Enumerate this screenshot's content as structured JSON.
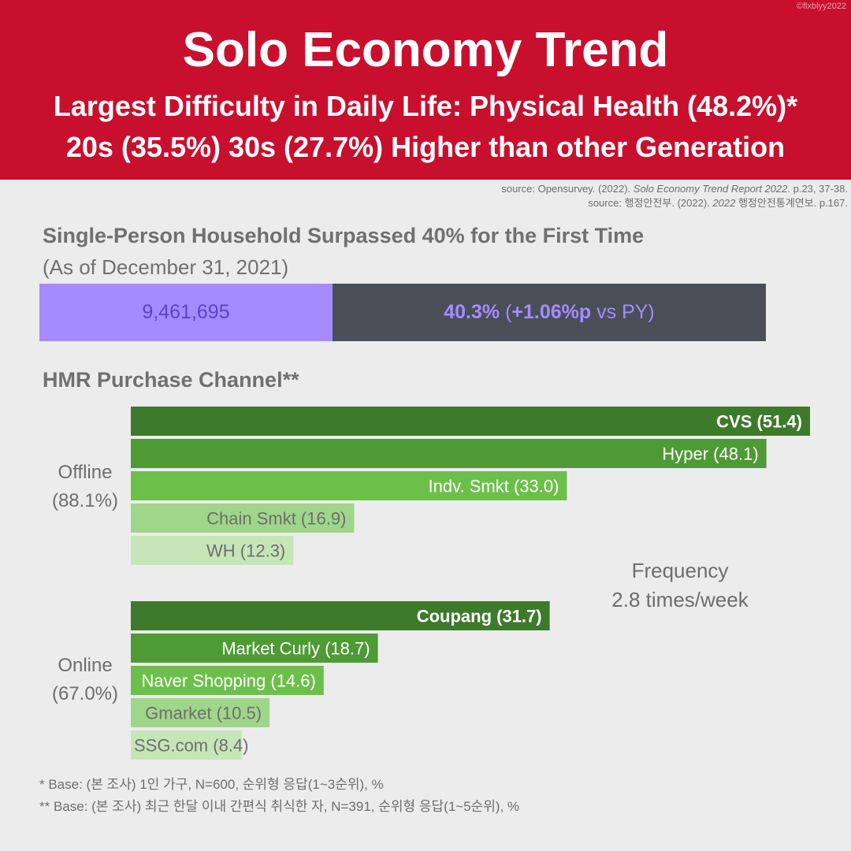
{
  "watermark": "©flxblyy2022",
  "header": {
    "title": "Solo Economy Trend",
    "subtitle1": "Largest Difficulty in Daily Life: Physical Health (48.2%)*",
    "subtitle2": "20s (35.5%) 30s (27.7%) Higher than other Generation"
  },
  "sources": {
    "source1_prefix": "source: Opensurvey. (2022). ",
    "source1_italic": "Solo Economy Trend Report 2022",
    "source1_suffix": ". p.23, 37-38.",
    "source2_prefix": "source:  행정안전부. (2022). ",
    "source2_italic": "2022",
    "source2_suffix": " 행정안전통계연보. p.167."
  },
  "household": {
    "title": "Single-Person Household Surpassed 40% for the First Time",
    "date": "(As of December 31, 2021)",
    "count": "9,461,695",
    "share": 0.403,
    "pct": "40.3%",
    "change_open": " (",
    "change": "+1.06%p",
    "change_suffix": " vs PY)",
    "colors": {
      "count": "#a48bff",
      "rest": "#4a4f57"
    }
  },
  "channel_title": "HMR Purchase Channel**",
  "frequency": {
    "line1": "Frequency",
    "line2": "2.8 times/week"
  },
  "chart_data": {
    "type": "bar",
    "orientation": "horizontal",
    "title": "HMR Purchase Channel**",
    "xlim": [
      0,
      51.4
    ],
    "groups": [
      {
        "name": "Offline",
        "pct_label": "(88.1%)",
        "bars": [
          {
            "label": "CVS (51.4)",
            "value": 51.4,
            "bold": true,
            "color": "#3d7a2a",
            "text_color": "#ffffff"
          },
          {
            "label": "Hyper (48.1)",
            "value": 48.1,
            "bold": false,
            "color": "#4e9a35",
            "text_color": "#ffffff"
          },
          {
            "label": "Indv. Smkt (33.0)",
            "value": 33.0,
            "bold": false,
            "color": "#6cc04a",
            "text_color": "#ffffff"
          },
          {
            "label": "Chain Smkt (16.9)",
            "value": 16.9,
            "bold": false,
            "color": "#9fd68a",
            "text_color": "#6e6e6e"
          },
          {
            "label": "WH (12.3)",
            "value": 12.3,
            "bold": false,
            "color": "#c6e6b8",
            "text_color": "#6e6e6e"
          }
        ]
      },
      {
        "name": "Online",
        "pct_label": "(67.0%)",
        "bars": [
          {
            "label": "Coupang (31.7)",
            "value": 31.7,
            "bold": true,
            "color": "#3d7a2a",
            "text_color": "#ffffff"
          },
          {
            "label": "Market Curly (18.7)",
            "value": 18.7,
            "bold": false,
            "color": "#4e9a35",
            "text_color": "#ffffff"
          },
          {
            "label": "Naver Shopping (14.6)",
            "value": 14.6,
            "bold": false,
            "color": "#6cc04a",
            "text_color": "#ffffff"
          },
          {
            "label": "Gmarket (10.5)",
            "value": 10.5,
            "bold": false,
            "color": "#9fd68a",
            "text_color": "#6e6e6e"
          },
          {
            "label": "SSG.com (8.4)",
            "value": 8.4,
            "bold": false,
            "color": "#c6e6b8",
            "text_color": "#6e6e6e"
          }
        ]
      }
    ]
  },
  "footnotes": {
    "fn1": "* Base: (본 조사) 1인 가구, N=600, 순위형 응답(1~3순위), %",
    "fn2": "** Base: (본 조사) 최근 한달 이내 간편식 취식한 자, N=391, 순위형 응답(1~5순위), %"
  }
}
